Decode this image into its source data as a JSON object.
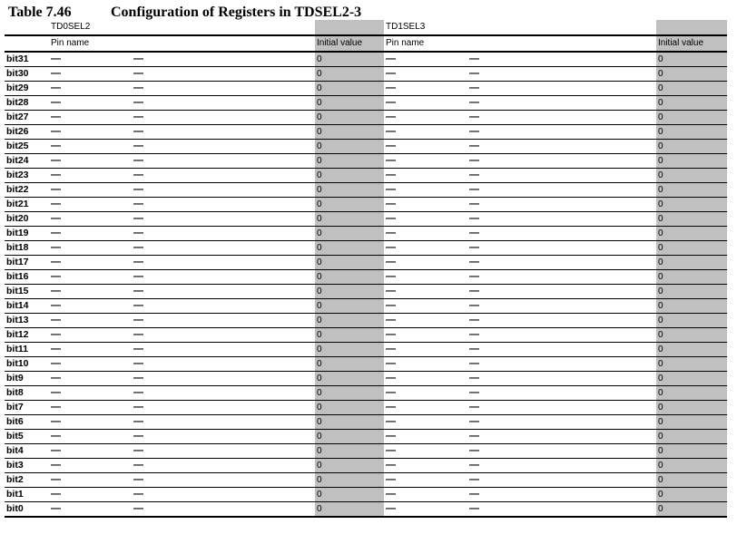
{
  "title": {
    "number": "Table 7.46",
    "text": "Configuration of Registers in TDSEL2-3"
  },
  "registers": [
    "TD0SEL2",
    "TD1SEL3"
  ],
  "column_headers": {
    "pin_name": "Pin name",
    "initial_value": "Initial value"
  },
  "rows": [
    {
      "bit": "bit31",
      "a1": "—",
      "a2": "—",
      "iv1": "0",
      "b1": "—",
      "b2": "—",
      "iv2": "0"
    },
    {
      "bit": "bit30",
      "a1": "—",
      "a2": "—",
      "iv1": "0",
      "b1": "—",
      "b2": "—",
      "iv2": "0"
    },
    {
      "bit": "bit29",
      "a1": "—",
      "a2": "—",
      "iv1": "0",
      "b1": "—",
      "b2": "—",
      "iv2": "0"
    },
    {
      "bit": "bit28",
      "a1": "—",
      "a2": "—",
      "iv1": "0",
      "b1": "—",
      "b2": "—",
      "iv2": "0"
    },
    {
      "bit": "bit27",
      "a1": "—",
      "a2": "—",
      "iv1": "0",
      "b1": "—",
      "b2": "—",
      "iv2": "0"
    },
    {
      "bit": "bit26",
      "a1": "—",
      "a2": "—",
      "iv1": "0",
      "b1": "—",
      "b2": "—",
      "iv2": "0"
    },
    {
      "bit": "bit25",
      "a1": "—",
      "a2": "—",
      "iv1": "0",
      "b1": "—",
      "b2": "—",
      "iv2": "0"
    },
    {
      "bit": "bit24",
      "a1": "—",
      "a2": "—",
      "iv1": "0",
      "b1": "—",
      "b2": "—",
      "iv2": "0"
    },
    {
      "bit": "bit23",
      "a1": "—",
      "a2": "—",
      "iv1": "0",
      "b1": "—",
      "b2": "—",
      "iv2": "0"
    },
    {
      "bit": "bit22",
      "a1": "—",
      "a2": "—",
      "iv1": "0",
      "b1": "—",
      "b2": "—",
      "iv2": "0"
    },
    {
      "bit": "bit21",
      "a1": "—",
      "a2": "—",
      "iv1": "0",
      "b1": "—",
      "b2": "—",
      "iv2": "0"
    },
    {
      "bit": "bit20",
      "a1": "—",
      "a2": "—",
      "iv1": "0",
      "b1": "—",
      "b2": "—",
      "iv2": "0"
    },
    {
      "bit": "bit19",
      "a1": "—",
      "a2": "—",
      "iv1": "0",
      "b1": "—",
      "b2": "—",
      "iv2": "0"
    },
    {
      "bit": "bit18",
      "a1": "—",
      "a2": "—",
      "iv1": "0",
      "b1": "—",
      "b2": "—",
      "iv2": "0"
    },
    {
      "bit": "bit17",
      "a1": "—",
      "a2": "—",
      "iv1": "0",
      "b1": "—",
      "b2": "—",
      "iv2": "0"
    },
    {
      "bit": "bit16",
      "a1": "—",
      "a2": "—",
      "iv1": "0",
      "b1": "—",
      "b2": "—",
      "iv2": "0"
    },
    {
      "bit": "bit15",
      "a1": "—",
      "a2": "—",
      "iv1": "0",
      "b1": "—",
      "b2": "—",
      "iv2": "0"
    },
    {
      "bit": "bit14",
      "a1": "—",
      "a2": "—",
      "iv1": "0",
      "b1": "—",
      "b2": "—",
      "iv2": "0"
    },
    {
      "bit": "bit13",
      "a1": "—",
      "a2": "—",
      "iv1": "0",
      "b1": "—",
      "b2": "—",
      "iv2": "0"
    },
    {
      "bit": "bit12",
      "a1": "—",
      "a2": "—",
      "iv1": "0",
      "b1": "—",
      "b2": "—",
      "iv2": "0"
    },
    {
      "bit": "bit11",
      "a1": "—",
      "a2": "—",
      "iv1": "0",
      "b1": "—",
      "b2": "—",
      "iv2": "0"
    },
    {
      "bit": "bit10",
      "a1": "—",
      "a2": "—",
      "iv1": "0",
      "b1": "—",
      "b2": "—",
      "iv2": "0"
    },
    {
      "bit": "bit9",
      "a1": "—",
      "a2": "—",
      "iv1": "0",
      "b1": "—",
      "b2": "—",
      "iv2": "0"
    },
    {
      "bit": "bit8",
      "a1": "—",
      "a2": "—",
      "iv1": "0",
      "b1": "—",
      "b2": "—",
      "iv2": "0"
    },
    {
      "bit": "bit7",
      "a1": "—",
      "a2": "—",
      "iv1": "0",
      "b1": "—",
      "b2": "—",
      "iv2": "0"
    },
    {
      "bit": "bit6",
      "a1": "—",
      "a2": "—",
      "iv1": "0",
      "b1": "—",
      "b2": "—",
      "iv2": "0"
    },
    {
      "bit": "bit5",
      "a1": "—",
      "a2": "—",
      "iv1": "0",
      "b1": "—",
      "b2": "—",
      "iv2": "0"
    },
    {
      "bit": "bit4",
      "a1": "—",
      "a2": "—",
      "iv1": "0",
      "b1": "—",
      "b2": "—",
      "iv2": "0"
    },
    {
      "bit": "bit3",
      "a1": "—",
      "a2": "—",
      "iv1": "0",
      "b1": "—",
      "b2": "—",
      "iv2": "0"
    },
    {
      "bit": "bit2",
      "a1": "—",
      "a2": "—",
      "iv1": "0",
      "b1": "—",
      "b2": "—",
      "iv2": "0"
    },
    {
      "bit": "bit1",
      "a1": "—",
      "a2": "—",
      "iv1": "0",
      "b1": "—",
      "b2": "—",
      "iv2": "0"
    },
    {
      "bit": "bit0",
      "a1": "—",
      "a2": "—",
      "iv1": "0",
      "b1": "—",
      "b2": "—",
      "iv2": "0"
    }
  ],
  "colors": {
    "shaded_column": "#c0c0c0"
  }
}
